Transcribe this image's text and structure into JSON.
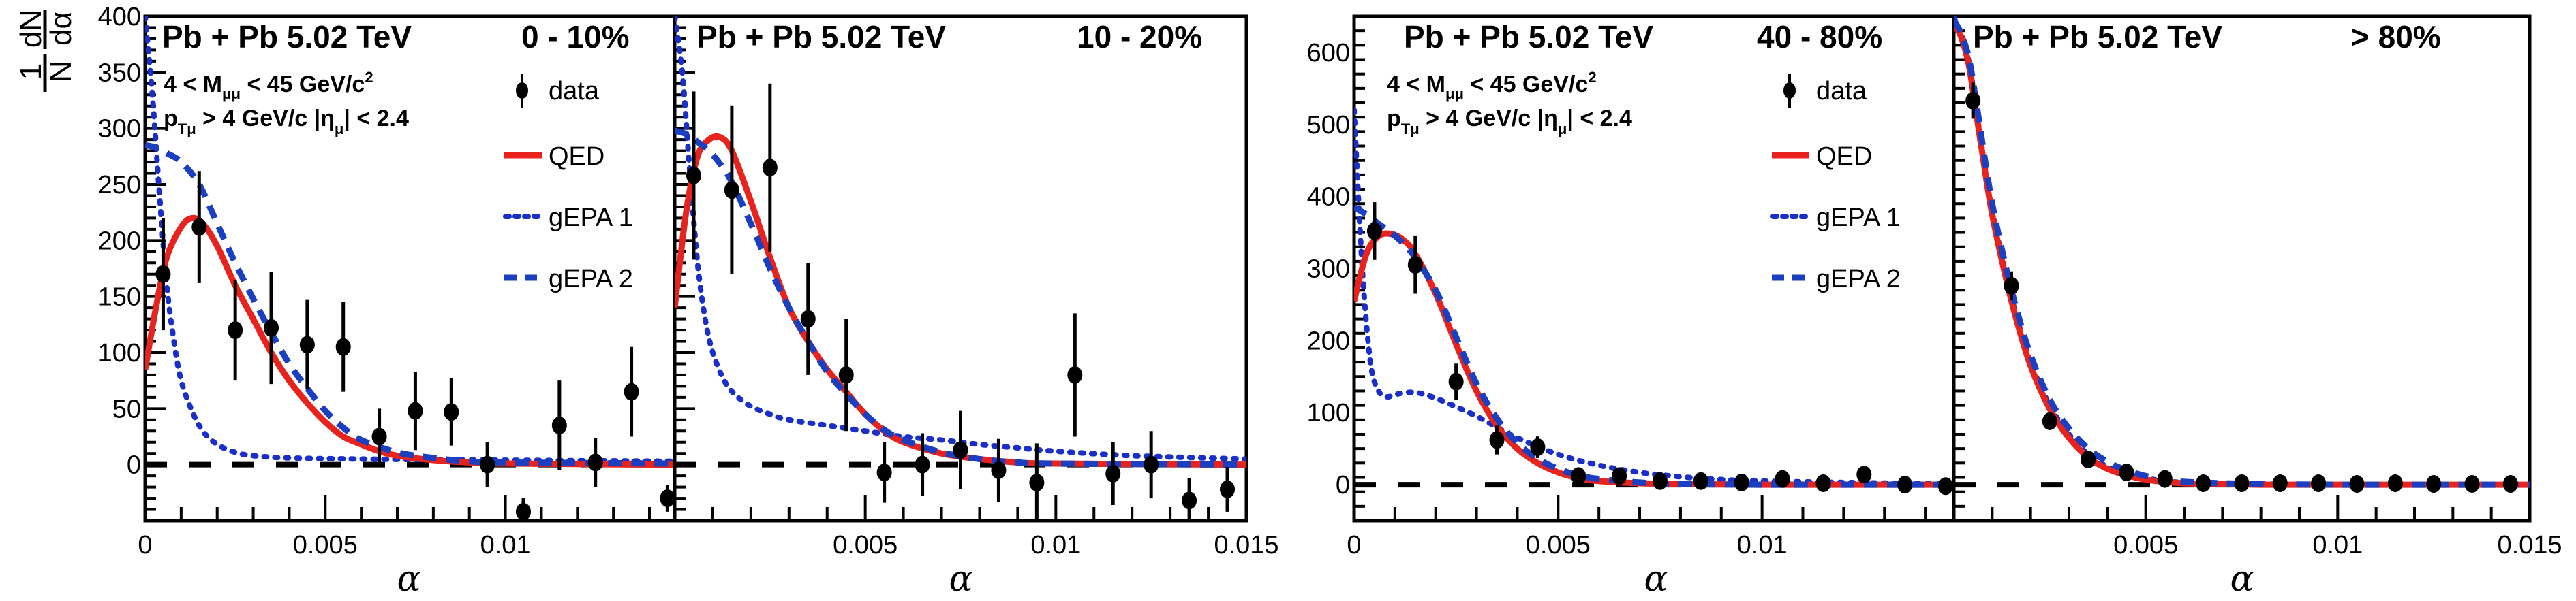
{
  "chart_data": [
    {
      "type": "scatter",
      "figure": "left",
      "panel": "0-10%",
      "title": "Pb + Pb 5.02 TeV",
      "centrality": "0 - 10%",
      "cuts": [
        "4 < M_μμ < 45 GeV/c²",
        "p_Tμ > 4 GeV/c  |η_μ| < 2.4"
      ],
      "xlabel": "α",
      "ylabel": "1/N dN/dα",
      "xlim": [
        0,
        0.0147
      ],
      "ylim": [
        -50,
        400
      ],
      "xticks": [
        0,
        0.005,
        0.01
      ],
      "xtick_labels": [
        "0",
        "0.005",
        "0.01"
      ],
      "yticks": [
        0,
        50,
        100,
        150,
        200,
        250,
        300,
        350,
        400
      ],
      "ytick_labels": [
        "0",
        "50",
        "100",
        "150",
        "200",
        "250",
        "300",
        "350",
        "400"
      ],
      "legend": [
        "data",
        "QED",
        "gEPA 1",
        "gEPA 2"
      ],
      "data": {
        "x": [
          0.0005,
          0.0015,
          0.0025,
          0.0035,
          0.0045,
          0.0055,
          0.0065,
          0.0075,
          0.0085,
          0.0095,
          0.0105,
          0.0115,
          0.0125,
          0.0135,
          0.0145
        ],
        "y": [
          170,
          212,
          120,
          122,
          107,
          105,
          25,
          48,
          47,
          0,
          -42,
          35,
          2,
          65,
          -30
        ],
        "err": [
          50,
          50,
          45,
          50,
          40,
          40,
          25,
          35,
          30,
          20,
          12,
          40,
          22,
          40,
          12
        ]
      },
      "series": [
        {
          "name": "QED",
          "x": [
            0,
            0.0003,
            0.0006,
            0.001,
            0.0013,
            0.0016,
            0.002,
            0.0025,
            0.003,
            0.0035,
            0.004,
            0.0045,
            0.005,
            0.0055,
            0.006,
            0.0065,
            0.007,
            0.008,
            0.009,
            0.01,
            0.0147
          ],
          "y": [
            85,
            140,
            185,
            212,
            220,
            215,
            195,
            160,
            130,
            100,
            75,
            55,
            38,
            25,
            18,
            12,
            8,
            4,
            2,
            1,
            0
          ]
        },
        {
          "name": "gEPA 1",
          "x": [
            0,
            0.0002,
            0.0004,
            0.0006,
            0.0008,
            0.001,
            0.0013,
            0.0016,
            0.002,
            0.0025,
            0.003,
            0.004,
            0.006,
            0.01,
            0.0147
          ],
          "y": [
            400,
            330,
            240,
            160,
            110,
            75,
            48,
            30,
            18,
            11,
            8,
            6,
            5,
            4,
            3
          ]
        },
        {
          "name": "gEPA 2",
          "x": [
            0,
            0.0003,
            0.0006,
            0.001,
            0.0015,
            0.002,
            0.0025,
            0.003,
            0.0035,
            0.004,
            0.0045,
            0.005,
            0.0055,
            0.006,
            0.007,
            0.008,
            0.009,
            0.01,
            0.0147
          ],
          "y": [
            285,
            283,
            278,
            270,
            250,
            215,
            180,
            148,
            118,
            90,
            68,
            48,
            33,
            22,
            11,
            6,
            3,
            2,
            1
          ]
        }
      ]
    },
    {
      "type": "scatter",
      "figure": "left",
      "panel": "10-20%",
      "title": "Pb + Pb 5.02 TeV",
      "centrality": "10 - 20%",
      "xlabel": "α",
      "xlim": [
        0,
        0.015
      ],
      "ylim": [
        -50,
        400
      ],
      "xticks": [
        0.005,
        0.01,
        0.015
      ],
      "xtick_labels": [
        "0.005",
        "0.01",
        "0.015"
      ],
      "data": {
        "x": [
          0.0005,
          0.0015,
          0.0025,
          0.0035,
          0.0045,
          0.0055,
          0.0065,
          0.0075,
          0.0085,
          0.0095,
          0.0105,
          0.0115,
          0.0125,
          0.0135,
          0.0145
        ],
        "y": [
          258,
          245,
          265,
          130,
          80,
          -7,
          0,
          13,
          -5,
          -16,
          80,
          -8,
          0,
          -32,
          -22
        ],
        "err": [
          75,
          75,
          75,
          50,
          50,
          27,
          28,
          35,
          28,
          35,
          55,
          28,
          30,
          20,
          20
        ]
      },
      "series": [
        {
          "name": "QED",
          "x": [
            0,
            0.0003,
            0.0006,
            0.0009,
            0.0012,
            0.0015,
            0.002,
            0.0025,
            0.003,
            0.0035,
            0.004,
            0.0045,
            0.005,
            0.0055,
            0.006,
            0.007,
            0.008,
            0.009,
            0.01,
            0.015
          ],
          "y": [
            140,
            225,
            275,
            290,
            292,
            280,
            235,
            185,
            140,
            110,
            85,
            65,
            45,
            30,
            20,
            10,
            5,
            2,
            1,
            0
          ]
        },
        {
          "name": "gEPA 1",
          "x": [
            0,
            0.0002,
            0.0004,
            0.0006,
            0.0008,
            0.001,
            0.0013,
            0.0016,
            0.002,
            0.0025,
            0.003,
            0.004,
            0.005,
            0.006,
            0.007,
            0.008,
            0.009,
            0.01,
            0.012,
            0.015
          ],
          "y": [
            400,
            350,
            260,
            180,
            130,
            100,
            75,
            62,
            52,
            45,
            40,
            35,
            30,
            25,
            22,
            18,
            15,
            12,
            8,
            5
          ]
        },
        {
          "name": "gEPA 2",
          "x": [
            0,
            0.0003,
            0.0006,
            0.0009,
            0.0012,
            0.0015,
            0.002,
            0.0025,
            0.003,
            0.0035,
            0.004,
            0.0045,
            0.005,
            0.0055,
            0.006,
            0.007,
            0.008,
            0.009,
            0.01,
            0.015
          ],
          "y": [
            298,
            295,
            288,
            280,
            268,
            252,
            215,
            175,
            140,
            110,
            83,
            63,
            45,
            31,
            22,
            11,
            5,
            2,
            1,
            0
          ]
        }
      ]
    },
    {
      "type": "scatter",
      "figure": "right",
      "panel": "40-80%",
      "title": "Pb + Pb 5.02 TeV",
      "centrality": "40 - 80%",
      "cuts": [
        "4 < M_μμ < 45 GeV/c²",
        "p_Tμ > 4 GeV/c  |η_μ| < 2.4"
      ],
      "xlabel": "α",
      "xlim": [
        0,
        0.0147
      ],
      "ylim": [
        -50,
        650
      ],
      "xticks": [
        0,
        0.005,
        0.01
      ],
      "xtick_labels": [
        "0",
        "0.005",
        "0.01"
      ],
      "yticks": [
        0,
        100,
        200,
        300,
        400,
        500,
        600
      ],
      "ytick_labels": [
        "0",
        "100",
        "200",
        "300",
        "400",
        "500",
        "600"
      ],
      "legend": [
        "data",
        "QED",
        "gEPA 1",
        "gEPA 2"
      ],
      "data": {
        "x": [
          0.0005,
          0.0015,
          0.0025,
          0.0035,
          0.0045,
          0.0055,
          0.0065,
          0.0075,
          0.0085,
          0.0095,
          0.0105,
          0.0115,
          0.0125,
          0.0135,
          0.0145
        ],
        "y": [
          352,
          305,
          143,
          62,
          52,
          12,
          12,
          5,
          5,
          3,
          8,
          2,
          14,
          0,
          -2
        ],
        "err": [
          40,
          40,
          25,
          20,
          15,
          8,
          8,
          8,
          8,
          6,
          6,
          8,
          8,
          5,
          5
        ]
      },
      "series": [
        {
          "name": "QED",
          "x": [
            0,
            0.0003,
            0.0006,
            0.0009,
            0.0012,
            0.0015,
            0.002,
            0.0025,
            0.003,
            0.0035,
            0.004,
            0.0045,
            0.005,
            0.0055,
            0.006,
            0.007,
            0.008,
            0.01,
            0.0147
          ],
          "y": [
            255,
            320,
            345,
            348,
            340,
            320,
            265,
            195,
            130,
            82,
            50,
            30,
            17,
            9,
            5,
            2,
            1,
            0,
            0
          ]
        },
        {
          "name": "gEPA 1",
          "x": [
            0,
            0.0002,
            0.0004,
            0.0006,
            0.0008,
            0.001,
            0.0013,
            0.0016,
            0.002,
            0.0025,
            0.003,
            0.0035,
            0.004,
            0.005,
            0.006,
            0.007,
            0.008,
            0.009,
            0.01,
            0.012,
            0.0147
          ],
          "y": [
            520,
            300,
            170,
            130,
            122,
            125,
            128,
            127,
            120,
            108,
            95,
            80,
            65,
            42,
            27,
            17,
            11,
            7,
            5,
            3,
            1
          ]
        },
        {
          "name": "gEPA 2",
          "x": [
            0,
            0.0003,
            0.0006,
            0.0009,
            0.0012,
            0.0015,
            0.002,
            0.0025,
            0.003,
            0.0035,
            0.004,
            0.0045,
            0.005,
            0.0055,
            0.006,
            0.007,
            0.008,
            0.01,
            0.0147
          ],
          "y": [
            385,
            375,
            362,
            350,
            335,
            315,
            270,
            205,
            140,
            92,
            58,
            36,
            22,
            13,
            8,
            3,
            1,
            0,
            0
          ]
        }
      ]
    },
    {
      "type": "scatter",
      "figure": "right",
      "panel": ">80%",
      "title": "Pb + Pb 5.02 TeV",
      "centrality": "> 80%",
      "xlabel": "α",
      "xlim": [
        0,
        0.015
      ],
      "ylim": [
        -50,
        650
      ],
      "xticks": [
        0.005,
        0.01,
        0.015
      ],
      "xtick_labels": [
        "0.005",
        "0.01",
        "0.015"
      ],
      "data": {
        "x": [
          0.0005,
          0.0015,
          0.0025,
          0.0035,
          0.0045,
          0.0055,
          0.0065,
          0.0075,
          0.0085,
          0.0095,
          0.0105,
          0.0115,
          0.0125,
          0.0135,
          0.0145
        ],
        "y": [
          533,
          276,
          88,
          35,
          17,
          8,
          2,
          2,
          2,
          2,
          1,
          2,
          1,
          1,
          1
        ],
        "err": [
          25,
          20,
          10,
          8,
          8,
          5,
          4,
          4,
          8,
          8,
          4,
          8,
          5,
          8,
          5
        ]
      },
      "series": [
        {
          "name": "QED",
          "x": [
            0,
            0.0002,
            0.0004,
            0.0006,
            0.0008,
            0.001,
            0.0013,
            0.0016,
            0.002,
            0.0025,
            0.003,
            0.0035,
            0.004,
            0.0045,
            0.005,
            0.0055,
            0.006,
            0.007,
            0.008,
            0.01,
            0.015
          ],
          "y": [
            640,
            620,
            580,
            510,
            440,
            375,
            300,
            235,
            165,
            105,
            65,
            38,
            22,
            13,
            7,
            4,
            2,
            1,
            0,
            0,
            0
          ]
        },
        {
          "name": "gEPA 1",
          "x": [
            0,
            0.0002,
            0.0004,
            0.0006,
            0.0008,
            0.001,
            0.0013,
            0.0016,
            0.002,
            0.0025,
            0.003,
            0.0035,
            0.004,
            0.0045,
            0.005,
            0.0055,
            0.006,
            0.007,
            0.008,
            0.01,
            0.015
          ],
          "y": [
            648,
            625,
            585,
            515,
            445,
            380,
            305,
            240,
            170,
            110,
            70,
            42,
            25,
            15,
            9,
            5,
            3,
            1,
            1,
            0,
            0
          ]
        },
        {
          "name": "gEPA 2",
          "x": [
            0,
            0.0002,
            0.0004,
            0.0006,
            0.0008,
            0.001,
            0.0013,
            0.0016,
            0.002,
            0.0025,
            0.003,
            0.0035,
            0.004,
            0.0045,
            0.005,
            0.0055,
            0.006,
            0.007,
            0.008,
            0.01,
            0.015
          ],
          "y": [
            645,
            625,
            590,
            525,
            455,
            390,
            315,
            250,
            180,
            118,
            78,
            50,
            32,
            20,
            12,
            7,
            4,
            2,
            1,
            0,
            0
          ]
        }
      ]
    }
  ],
  "colors": {
    "data": "#000000",
    "QED": "#e8231e",
    "gEPA1": "#1a2fc8",
    "gEPA2": "#1a3fc0",
    "zero_line": "#000000"
  },
  "labels": {
    "ylabel_num": "1",
    "ylabel_den": "N",
    "ylabel_dnum": "dN",
    "ylabel_dden": "dα",
    "xlabel": "α",
    "legend_data": "data",
    "legend_qed": "QED",
    "legend_gepa1": "gEPA 1",
    "legend_gepa2": "gEPA 2",
    "title": "Pb + Pb 5.02 TeV",
    "cent1": "0 - 10%",
    "cent2": "10 - 20%",
    "cent3": "40 - 80%",
    "cent4": "> 80%",
    "cut1_a": "4 < M",
    "cut1_sub": "μμ",
    "cut1_b": " < 45 GeV/c",
    "cut1_sup": "2",
    "cut2_a": "p",
    "cut2_sub": "Tμ",
    "cut2_b": " > 4 GeV/c  |η",
    "cut2_sub2": "μ",
    "cut2_c": "| < 2.4"
  }
}
